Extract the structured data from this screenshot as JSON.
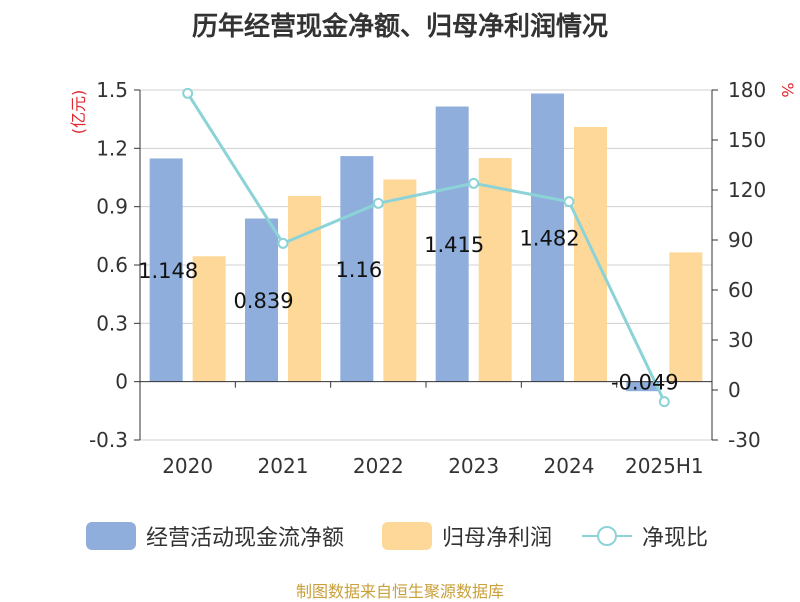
{
  "chart_data": {
    "type": "bar",
    "title": "历年经营现金净额、归母净利润情况",
    "categories": [
      "2020",
      "2021",
      "2022",
      "2023",
      "2024",
      "2025H1"
    ],
    "series": [
      {
        "name": "经营活动现金流净额",
        "type": "bar",
        "axis": "left",
        "color": "#8FAEDB",
        "values": [
          1.148,
          0.839,
          1.16,
          1.415,
          1.482,
          -0.049
        ],
        "labels": [
          "1.148",
          "0.839",
          "1.16",
          "1.415",
          "1.482",
          "-0.049"
        ]
      },
      {
        "name": "归母净利润",
        "type": "bar",
        "axis": "left",
        "color": "#FDD899",
        "values": [
          0.645,
          0.955,
          1.04,
          1.15,
          1.31,
          0.665
        ]
      },
      {
        "name": "净现比",
        "type": "line",
        "axis": "right",
        "color": "#8CD3D8",
        "values": [
          178,
          88,
          112,
          124,
          113,
          -7
        ]
      }
    ],
    "left_axis": {
      "label": "(亿元)",
      "ylim": [
        -0.3,
        1.5
      ],
      "ticks": [
        1.5,
        1.2,
        0.9,
        0.6,
        0.3,
        0,
        -0.3
      ],
      "tick_labels": [
        "1.5",
        "1.2",
        "0.9",
        "0.6",
        "0.3",
        "0",
        "-0.3"
      ]
    },
    "right_axis": {
      "label": "%",
      "ylim": [
        -30,
        180
      ],
      "ticks": [
        180,
        150,
        120,
        90,
        60,
        30,
        0,
        -30
      ],
      "tick_labels": [
        "180",
        "150",
        "120",
        "90",
        "60",
        "30",
        "0",
        "-30"
      ]
    },
    "grid": true,
    "legend_position": "bottom"
  },
  "source_text": "制图数据来自恒生聚源数据库",
  "colors": {
    "axis_label": "#E0262F",
    "grid": "#D0D0D0",
    "text": "#333333",
    "source": "#C9A03A"
  }
}
